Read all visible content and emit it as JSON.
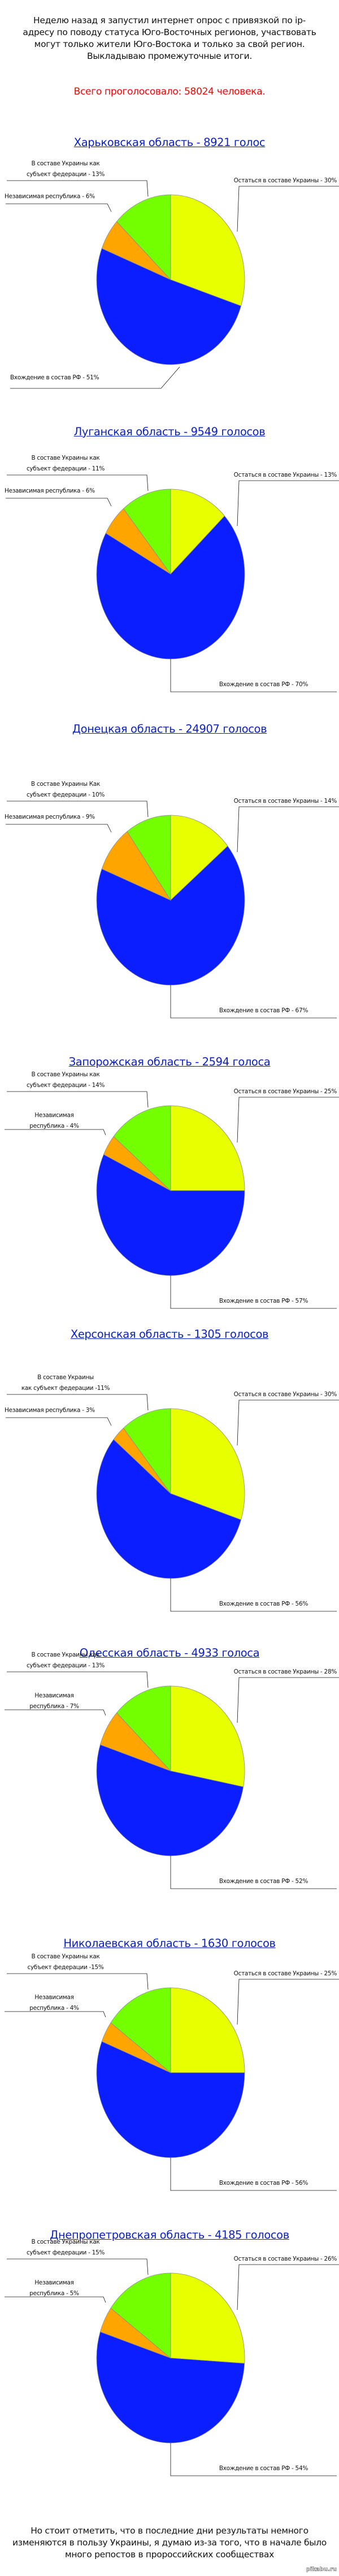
{
  "header": {
    "intro": "Неделю назад я запустил интернет опрос с привязкой по ip-адресу по поводу статуса Юго-Восточных регионов, участвовать могут только жители Юго-Востока и только за свой регион. Выкладываю промежуточные итоги.",
    "total": "Всего проголосовало: 58024 человека."
  },
  "colors": {
    "remain_ukraine": "#e8ff00",
    "join_rf": "#0a1eff",
    "independent": "#ffa500",
    "federation": "#73ff00",
    "title_link": "#0b1fc4",
    "total_text": "#ff0000"
  },
  "footer": {
    "outro": "Но стоит отметить, что в последние дни результаты немного изменяются в пользу Украины, я думаю из-за того, что в начале было много репостов в пророссийских сообществах",
    "watermark": "pikabu.ru"
  },
  "chart_data": [
    {
      "type": "pie",
      "title": "Харьковская область - 8921 голос",
      "categories": [
        "Остаться в составе Украины",
        "Вхождение в состав РФ",
        "Независимая республика",
        "В составе Украины как субъект федерации"
      ],
      "values": [
        30,
        51,
        6,
        13
      ],
      "labels": [
        "Остаться в составе Украины - 30%",
        "Вхождение в состав РФ - 51%",
        "Независимая республика - 6%",
        "В составе Украины как|субъект федерации - 13%"
      ]
    },
    {
      "type": "pie",
      "title": "Луганская область - 9549 голосов",
      "categories": [
        "Остаться в составе Украины",
        "Вхождение в состав РФ",
        "Независимая республика",
        "В составе Украины как субъект федерации"
      ],
      "values": [
        13,
        70,
        6,
        11
      ],
      "labels": [
        "Остаться в составе Украины - 13%",
        "Вхождение в состав РФ - 70%",
        "Независимая республика - 6%",
        "В составе Украины как|субъект федерации - 11%"
      ]
    },
    {
      "type": "pie",
      "title": "Донецкая область - 24907 голосов",
      "categories": [
        "Остаться в составе Украины",
        "Вхождение в состав РФ",
        "Независимая республика",
        "В составе Украины как субъект федерации"
      ],
      "values": [
        14,
        67,
        9,
        10
      ],
      "labels": [
        "Остаться в составе Украины - 14%",
        "Вхождение в состав РФ - 67%",
        "Независимая республика - 9%",
        "В составе Украины Как|субъект федерации - 10%"
      ]
    },
    {
      "type": "pie",
      "title": "Запорожская область - 2594 голоса",
      "categories": [
        "Остаться в составе Украины",
        "Вхождение в состав РФ",
        "Независимая республика",
        "В составе Украины как субъект федерации"
      ],
      "values": [
        25,
        57,
        4,
        14
      ],
      "labels": [
        "Остаться в составе Украины - 25%",
        "Вхождение в состав РФ - 57%",
        "Независимая|республика - 4%",
        "В составе Украины как|субъект федерации - 14%"
      ]
    },
    {
      "type": "pie",
      "title": "Херсонская область - 1305 голосов",
      "categories": [
        "Остаться в составе Украины",
        "Вхождение в состав РФ",
        "Независимая республика",
        "В составе Украины как субъект федерации"
      ],
      "values": [
        30,
        56,
        3,
        11
      ],
      "labels": [
        "Остаться в составе Украины - 30%",
        "Вхождение в состав РФ - 56%",
        "Независимая республика - 3%",
        "В составе Украины|как субъект федерации -11%"
      ]
    },
    {
      "type": "pie",
      "title": "Одесская область - 4933 голоса",
      "categories": [
        "Остаться в составе Украины",
        "Вхождение в состав РФ",
        "Независимая республика",
        "В составе Украины как субъект федерации"
      ],
      "values": [
        28,
        52,
        7,
        13
      ],
      "labels": [
        "Остаться в составе Украины - 28%",
        "Вхождение в состав РФ - 52%",
        "Независимая|республика - 7%",
        "В составе Украины как|субъект федерации - 13%"
      ]
    },
    {
      "type": "pie",
      "title": "Николаевская область - 1630 голосов",
      "categories": [
        "Остаться в составе Украины",
        "Вхождение в состав РФ",
        "Независимая республика",
        "В составе Украины как субъект федерации"
      ],
      "values": [
        25,
        56,
        4,
        15
      ],
      "labels": [
        "Остаться в составе Украины - 25%",
        "Вхождение в состав РФ - 56%",
        "Независимая|республика - 4%",
        "В составе Украины как|субъект федерации -15%"
      ]
    },
    {
      "type": "pie",
      "title": "Днепропетровская область - 4185 голосов",
      "categories": [
        "Остаться в составе Украины",
        "Вхождение в состав РФ",
        "Независимая республика",
        "В составе Украины как субъект федерации"
      ],
      "values": [
        26,
        54,
        5,
        15
      ],
      "labels": [
        "Остаться в составе Украины - 26%",
        "Вхождение в состав РФ - 54%",
        "Независимая|республика - 5%",
        "В составе Украины как|субъект федерации - 15%"
      ]
    }
  ]
}
